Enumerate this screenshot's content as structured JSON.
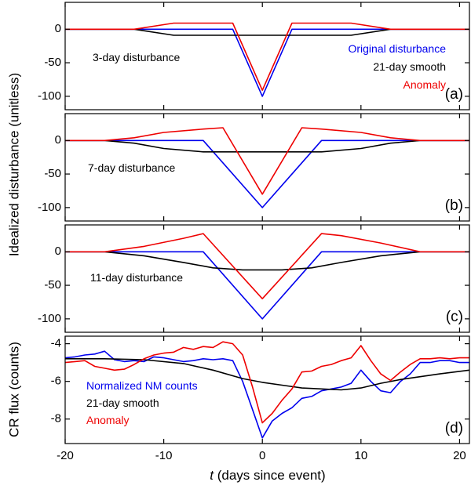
{
  "chart_data": [
    {
      "type": "line",
      "panel_label": "(a)",
      "annotation": "3-day disturbance",
      "legend": [
        "Original disturbance",
        "21-day smooth",
        "Anomaly"
      ],
      "xlim": [
        -20,
        21
      ],
      "ylim": [
        -120,
        40
      ],
      "yticks": [
        0,
        -50,
        -100
      ],
      "series": [
        {
          "name": "Original disturbance",
          "color": "#0000ee",
          "x": [
            -21,
            -3,
            0,
            3,
            21
          ],
          "y": [
            0,
            0,
            -100,
            0,
            0
          ]
        },
        {
          "name": "21-day smooth",
          "color": "#000000",
          "x": [
            -21,
            -13,
            -9,
            9,
            13,
            21
          ],
          "y": [
            0,
            0,
            -9,
            -9,
            0,
            0
          ]
        },
        {
          "name": "Anomaly",
          "color": "#ee0000",
          "x": [
            -21,
            -13,
            -9,
            -3,
            0,
            3,
            9,
            13,
            21
          ],
          "y": [
            0,
            0,
            9,
            9,
            -91,
            9,
            9,
            0,
            0
          ]
        }
      ]
    },
    {
      "type": "line",
      "panel_label": "(b)",
      "annotation": "7-day disturbance",
      "xlim": [
        -20,
        21
      ],
      "ylim": [
        -120,
        40
      ],
      "yticks": [
        0,
        -50,
        -100
      ],
      "series": [
        {
          "name": "Original disturbance",
          "color": "#0000ee",
          "x": [
            -21,
            -6,
            0,
            6,
            21
          ],
          "y": [
            0,
            0,
            -100,
            0,
            0
          ]
        },
        {
          "name": "21-day smooth",
          "color": "#000000",
          "x": [
            -21,
            -16,
            -13,
            -10,
            -6,
            6,
            10,
            13,
            16,
            21
          ],
          "y": [
            0,
            0,
            -4,
            -12,
            -17,
            -17,
            -12,
            -4,
            0,
            0
          ]
        },
        {
          "name": "Anomaly",
          "color": "#ee0000",
          "x": [
            -21,
            -16,
            -13,
            -10,
            -6,
            -4,
            0,
            4,
            6,
            10,
            13,
            16,
            21
          ],
          "y": [
            0,
            0,
            4,
            12,
            17,
            19,
            -80,
            19,
            17,
            12,
            4,
            0,
            0
          ]
        }
      ]
    },
    {
      "type": "line",
      "panel_label": "(c)",
      "annotation": "11-day disturbance",
      "xlim": [
        -20,
        21
      ],
      "ylim": [
        -120,
        40
      ],
      "yticks": [
        0,
        -50,
        -100
      ],
      "series": [
        {
          "name": "Original disturbance",
          "color": "#0000ee",
          "x": [
            -21,
            -6,
            0,
            6,
            21
          ],
          "y": [
            0,
            0,
            -100,
            0,
            0
          ]
        },
        {
          "name": "21-day smooth",
          "color": "#000000",
          "x": [
            -21,
            -16,
            -12,
            -8,
            -5,
            -2,
            0,
            2,
            5,
            8,
            12,
            16,
            21
          ],
          "y": [
            0,
            0,
            -6,
            -16,
            -24,
            -27,
            -27,
            -27,
            -24,
            -16,
            -6,
            0,
            0
          ]
        },
        {
          "name": "Anomaly",
          "color": "#ee0000",
          "x": [
            -21,
            -16,
            -12,
            -8,
            -6,
            0,
            6,
            8,
            12,
            16,
            21
          ],
          "y": [
            0,
            0,
            8,
            20,
            27,
            -70,
            27,
            24,
            13,
            0,
            0
          ]
        }
      ]
    },
    {
      "type": "line",
      "panel_label": "(d)",
      "ylabel": "CR flux (counts)",
      "xlabel_italic": "t",
      "xlabel_rest": " (days since event)",
      "legend": [
        "Normalized NM counts",
        "21-day smooth",
        "Anomaly"
      ],
      "xlim": [
        -20,
        21
      ],
      "ylim": [
        -9.3,
        -3.6
      ],
      "yticks": [
        -4,
        -6,
        -8
      ],
      "xticks": [
        -20,
        -10,
        0,
        10,
        20
      ],
      "series": [
        {
          "name": "Normalized NM counts",
          "color": "#0000ee",
          "x": [
            -21,
            -20,
            -19,
            -18,
            -17,
            -16,
            -15,
            -14,
            -13,
            -12,
            -11,
            -10,
            -9,
            -8,
            -7,
            -6,
            -5,
            -4,
            -3,
            -2,
            -1,
            0,
            1,
            2,
            3,
            4,
            5,
            6,
            7,
            8,
            9,
            10,
            11,
            12,
            13,
            14,
            15,
            16,
            17,
            18,
            19,
            20,
            21
          ],
          "y": [
            -4.8,
            -4.75,
            -4.7,
            -4.6,
            -4.55,
            -4.4,
            -4.85,
            -4.95,
            -4.9,
            -4.95,
            -4.7,
            -4.75,
            -4.85,
            -4.95,
            -4.9,
            -4.8,
            -4.85,
            -4.8,
            -4.9,
            -6.0,
            -7.5,
            -9.0,
            -8.1,
            -7.7,
            -7.4,
            -6.9,
            -6.8,
            -6.5,
            -6.4,
            -6.3,
            -6.1,
            -5.4,
            -6.0,
            -6.5,
            -6.6,
            -6.0,
            -5.6,
            -5.0,
            -5.0,
            -4.9,
            -4.9,
            -5.0,
            -5.0
          ]
        },
        {
          "name": "21-day smooth",
          "color": "#000000",
          "x": [
            -21,
            -16,
            -12,
            -8,
            -5,
            -2,
            0,
            2,
            4,
            6,
            8,
            10,
            12,
            14,
            16,
            18,
            21
          ],
          "y": [
            -4.8,
            -4.8,
            -4.85,
            -5.05,
            -5.4,
            -5.85,
            -6.05,
            -6.2,
            -6.35,
            -6.4,
            -6.45,
            -6.35,
            -6.1,
            -5.9,
            -5.75,
            -5.6,
            -5.4
          ]
        },
        {
          "name": "Anomaly",
          "color": "#ee0000",
          "x": [
            -21,
            -20,
            -19,
            -18,
            -17,
            -16,
            -15,
            -14,
            -13,
            -12,
            -11,
            -10,
            -9,
            -8,
            -7,
            -6,
            -5,
            -4,
            -3,
            -2,
            -1,
            0,
            1,
            2,
            3,
            4,
            5,
            6,
            7,
            8,
            9,
            10,
            11,
            12,
            13,
            14,
            15,
            16,
            17,
            18,
            19,
            20,
            21
          ],
          "y": [
            -5.1,
            -5.0,
            -4.95,
            -4.9,
            -5.2,
            -5.3,
            -5.4,
            -5.35,
            -5.1,
            -4.8,
            -4.6,
            -4.5,
            -4.45,
            -4.2,
            -4.3,
            -4.15,
            -4.2,
            -3.9,
            -4.0,
            -4.6,
            -6.3,
            -8.2,
            -7.7,
            -7.0,
            -6.4,
            -5.5,
            -5.45,
            -5.2,
            -5.1,
            -4.9,
            -4.75,
            -4.1,
            -4.9,
            -5.6,
            -5.95,
            -5.5,
            -5.1,
            -4.8,
            -4.8,
            -4.75,
            -4.8,
            -4.75,
            -4.75
          ]
        }
      ]
    }
  ],
  "shared": {
    "ylabel": "Idealized disturbance (unitless)"
  }
}
